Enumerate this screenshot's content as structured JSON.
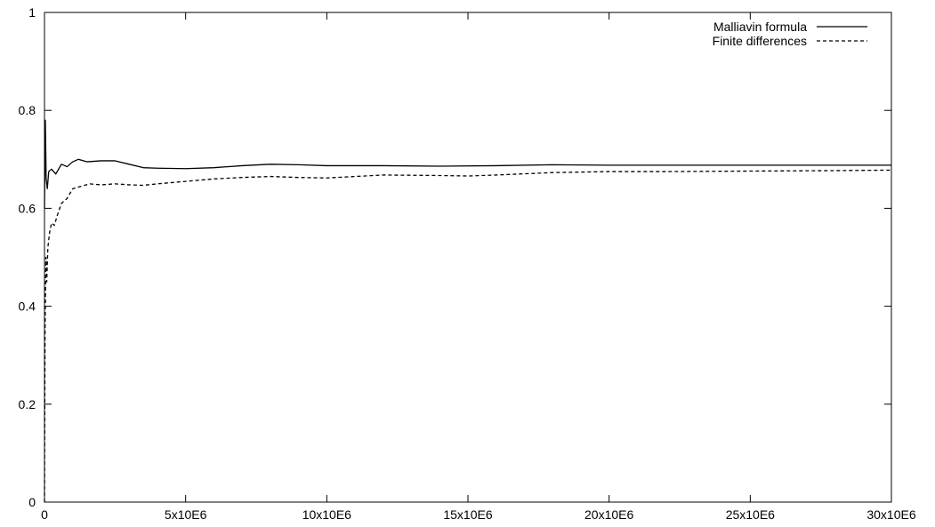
{
  "chart_data": {
    "type": "line",
    "title": "",
    "xlabel": "",
    "ylabel": "",
    "xlim": [
      0,
      30000000
    ],
    "ylim": [
      0,
      1
    ],
    "grid": false,
    "legend_position": "top-right",
    "x_ticks": [
      {
        "value": 0,
        "label": "0"
      },
      {
        "value": 5000000,
        "label": "5x10E6"
      },
      {
        "value": 10000000,
        "label": "10x10E6"
      },
      {
        "value": 15000000,
        "label": "15x10E6"
      },
      {
        "value": 20000000,
        "label": "20x10E6"
      },
      {
        "value": 25000000,
        "label": "25x10E6"
      },
      {
        "value": 30000000,
        "label": "30x10E6"
      }
    ],
    "y_ticks": [
      {
        "value": 0,
        "label": "0"
      },
      {
        "value": 0.2,
        "label": "0.2"
      },
      {
        "value": 0.4,
        "label": "0.4"
      },
      {
        "value": 0.6,
        "label": "0.6"
      },
      {
        "value": 0.8,
        "label": "0.8"
      },
      {
        "value": 1,
        "label": "1"
      }
    ],
    "series": [
      {
        "name": "Malliavin formula",
        "style": "solid",
        "color": "#000000",
        "x": [
          0,
          30000,
          60000,
          100000,
          150000,
          250000,
          400000,
          600000,
          800000,
          1000000,
          1200000,
          1500000,
          2000000,
          2500000,
          3000000,
          3500000,
          4000000,
          5000000,
          6000000,
          7000000,
          8000000,
          9000000,
          10000000,
          12000000,
          14000000,
          16000000,
          18000000,
          20000000,
          22000000,
          25000000,
          28000000,
          30000000
        ],
        "y": [
          0.6,
          0.78,
          0.66,
          0.64,
          0.675,
          0.68,
          0.67,
          0.69,
          0.685,
          0.695,
          0.7,
          0.695,
          0.697,
          0.697,
          0.69,
          0.683,
          0.682,
          0.681,
          0.683,
          0.687,
          0.69,
          0.689,
          0.687,
          0.687,
          0.686,
          0.687,
          0.689,
          0.688,
          0.688,
          0.688,
          0.688,
          0.688
        ]
      },
      {
        "name": "Finite differences",
        "style": "dashed",
        "color": "#000000",
        "x": [
          0,
          20000,
          50000,
          80000,
          120000,
          180000,
          250000,
          350000,
          450000,
          600000,
          800000,
          1000000,
          1300000,
          1600000,
          2000000,
          2500000,
          3000000,
          3500000,
          4000000,
          5000000,
          6000000,
          7000000,
          8000000,
          9000000,
          10000000,
          12000000,
          14000000,
          15000000,
          16000000,
          18000000,
          20000000,
          22000000,
          25000000,
          28000000,
          30000000
        ],
        "y": [
          0.0,
          0.35,
          0.5,
          0.45,
          0.52,
          0.55,
          0.57,
          0.565,
          0.585,
          0.61,
          0.62,
          0.64,
          0.645,
          0.65,
          0.648,
          0.65,
          0.648,
          0.647,
          0.65,
          0.655,
          0.66,
          0.663,
          0.665,
          0.663,
          0.662,
          0.668,
          0.667,
          0.666,
          0.668,
          0.673,
          0.675,
          0.675,
          0.676,
          0.677,
          0.678
        ]
      }
    ]
  }
}
